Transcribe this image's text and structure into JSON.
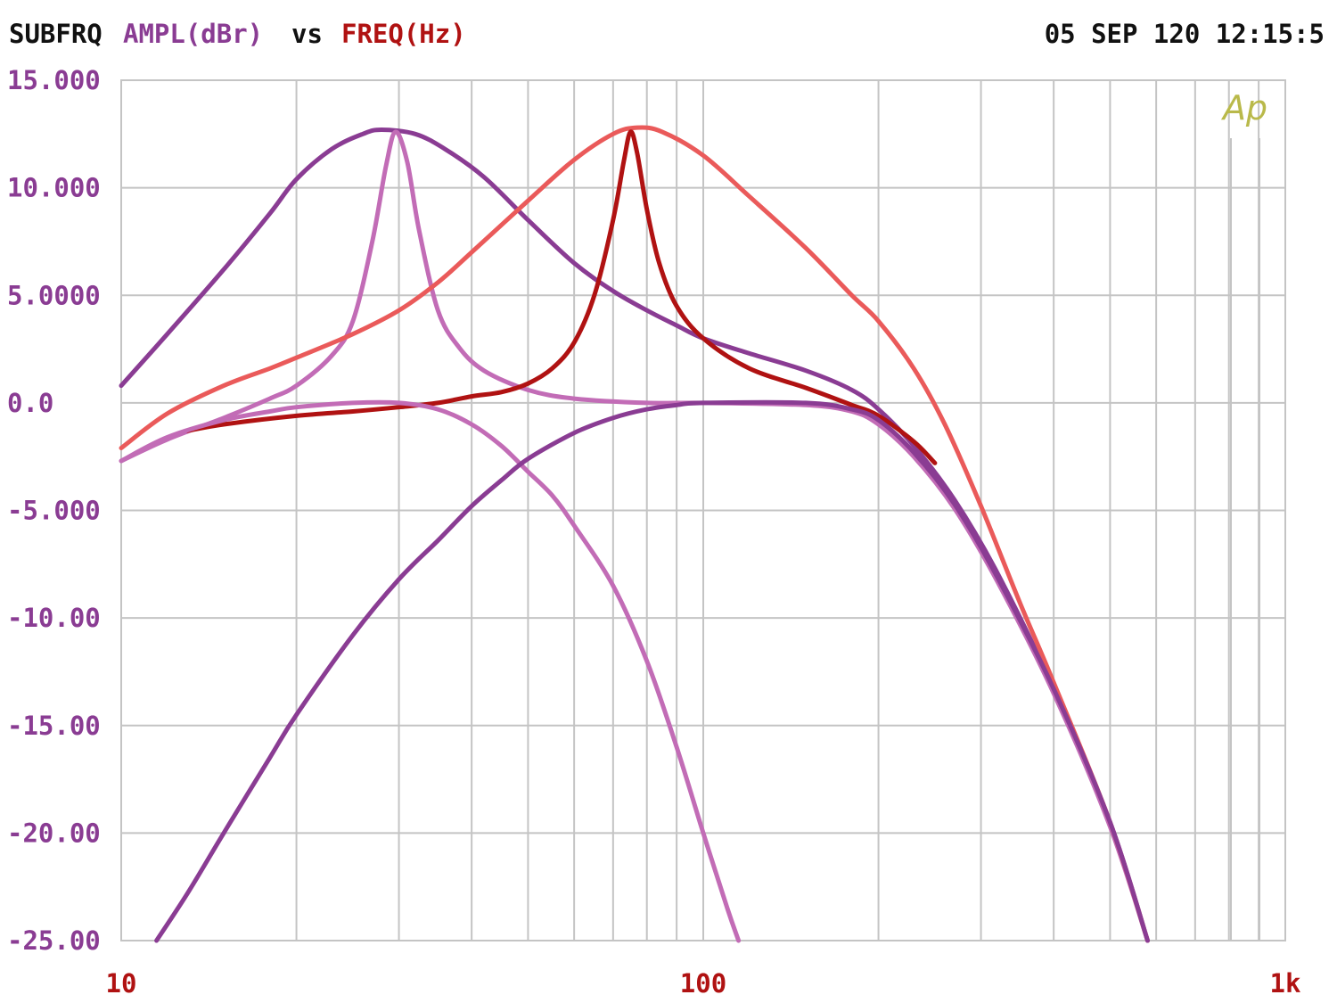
{
  "header": {
    "name": "SUBFRQ",
    "y_label": "AMPL(dBr)",
    "vs": "vs",
    "x_label": "FREQ(Hz)",
    "timestamp": "05 SEP 120 12:15:5"
  },
  "logo_text": "Ap",
  "colors": {
    "label_black": "#111111",
    "label_purple": "#8a3c93",
    "label_red": "#b01212",
    "grid": "#c4c4c4",
    "plot_border": "#c4c4c4",
    "logo": "#b9b94a"
  },
  "chart_data": {
    "type": "line",
    "title": "",
    "xlabel": "FREQ(Hz)",
    "ylabel": "AMPL(dBr)",
    "x_scale": "log",
    "xlim": [
      10,
      1000
    ],
    "ylim": [
      -25,
      15
    ],
    "grid": true,
    "x_tick_labels": [
      {
        "value": 10,
        "label": "10"
      },
      {
        "value": 100,
        "label": "100"
      },
      {
        "value": 1000,
        "label": "1k"
      }
    ],
    "y_tick_labels": [
      {
        "value": 15,
        "label": "15.000"
      },
      {
        "value": 10,
        "label": "10.000"
      },
      {
        "value": 5,
        "label": "5.0000"
      },
      {
        "value": 0,
        "label": "0.0"
      },
      {
        "value": -5,
        "label": "-5.000"
      },
      {
        "value": -10,
        "label": "-10.00"
      },
      {
        "value": -15,
        "label": "-15.00"
      },
      {
        "value": -20,
        "label": "-20.00"
      },
      {
        "value": -25,
        "label": "-25.00"
      }
    ],
    "series": [
      {
        "color": "#8a3c93",
        "width": 5,
        "points": [
          [
            10,
            0.8
          ],
          [
            12,
            3.2
          ],
          [
            15,
            6.2
          ],
          [
            18,
            8.8
          ],
          [
            20,
            10.4
          ],
          [
            23,
            11.8
          ],
          [
            26,
            12.5
          ],
          [
            28,
            12.7
          ],
          [
            32,
            12.5
          ],
          [
            36,
            11.8
          ],
          [
            42,
            10.5
          ],
          [
            50,
            8.5
          ],
          [
            60,
            6.5
          ],
          [
            70,
            5.2
          ],
          [
            80,
            4.3
          ],
          [
            90,
            3.6
          ],
          [
            100,
            3.0
          ],
          [
            120,
            2.3
          ],
          [
            150,
            1.5
          ],
          [
            180,
            0.6
          ],
          [
            200,
            -0.3
          ],
          [
            230,
            -2.0
          ],
          [
            270,
            -4.5
          ],
          [
            320,
            -7.9
          ],
          [
            400,
            -13.3
          ],
          [
            500,
            -19.5
          ],
          [
            580,
            -25.0
          ]
        ]
      },
      {
        "color": "#c26cb6",
        "width": 5,
        "points": [
          [
            10,
            -2.7
          ],
          [
            12,
            -1.7
          ],
          [
            15,
            -0.7
          ],
          [
            18,
            0.2
          ],
          [
            20,
            0.8
          ],
          [
            23,
            2.2
          ],
          [
            25,
            3.8
          ],
          [
            27,
            7.5
          ],
          [
            28.5,
            11.0
          ],
          [
            29.6,
            12.6
          ],
          [
            31,
            11.2
          ],
          [
            32.5,
            8.0
          ],
          [
            35,
            4.3
          ],
          [
            38,
            2.6
          ],
          [
            42,
            1.5
          ],
          [
            50,
            0.6
          ],
          [
            60,
            0.2
          ],
          [
            80,
            0.0
          ],
          [
            100,
            0.0
          ],
          [
            150,
            -0.1
          ],
          [
            180,
            -0.4
          ],
          [
            200,
            -1.0
          ],
          [
            230,
            -2.5
          ],
          [
            270,
            -4.9
          ],
          [
            320,
            -8.3
          ],
          [
            400,
            -13.5
          ],
          [
            500,
            -19.7
          ],
          [
            580,
            -25.0
          ]
        ]
      },
      {
        "color": "#ea5a5a",
        "width": 5,
        "points": [
          [
            10,
            -2.1
          ],
          [
            12,
            -0.5
          ],
          [
            15,
            0.8
          ],
          [
            18,
            1.6
          ],
          [
            20,
            2.1
          ],
          [
            25,
            3.2
          ],
          [
            30,
            4.3
          ],
          [
            35,
            5.6
          ],
          [
            40,
            7.0
          ],
          [
            50,
            9.4
          ],
          [
            60,
            11.3
          ],
          [
            70,
            12.5
          ],
          [
            77,
            12.8
          ],
          [
            85,
            12.6
          ],
          [
            100,
            11.5
          ],
          [
            120,
            9.6
          ],
          [
            150,
            7.2
          ],
          [
            180,
            5.0
          ],
          [
            200,
            3.8
          ],
          [
            230,
            1.6
          ],
          [
            260,
            -1.0
          ],
          [
            300,
            -4.8
          ],
          [
            350,
            -9.3
          ],
          [
            400,
            -13.0
          ],
          [
            500,
            -19.5
          ],
          [
            580,
            -25.0
          ]
        ]
      },
      {
        "color": "#b01212",
        "width": 5,
        "points": [
          [
            13,
            -1.3
          ],
          [
            15,
            -1.0
          ],
          [
            20,
            -0.6
          ],
          [
            25,
            -0.4
          ],
          [
            30,
            -0.2
          ],
          [
            35,
            0.0
          ],
          [
            40,
            0.3
          ],
          [
            45,
            0.5
          ],
          [
            50,
            0.9
          ],
          [
            55,
            1.6
          ],
          [
            60,
            2.8
          ],
          [
            65,
            5.0
          ],
          [
            70,
            8.5
          ],
          [
            73,
            11.2
          ],
          [
            75,
            12.6
          ],
          [
            77,
            11.6
          ],
          [
            80,
            9.0
          ],
          [
            84,
            6.5
          ],
          [
            90,
            4.5
          ],
          [
            100,
            3.0
          ],
          [
            120,
            1.6
          ],
          [
            150,
            0.7
          ],
          [
            180,
            -0.1
          ],
          [
            200,
            -0.6
          ],
          [
            230,
            -1.8
          ],
          [
            250,
            -2.8
          ]
        ]
      },
      {
        "color": "#c26cb6",
        "width": 5,
        "points": [
          [
            10,
            -2.7
          ],
          [
            12,
            -1.6
          ],
          [
            15,
            -0.8
          ],
          [
            18,
            -0.4
          ],
          [
            20,
            -0.2
          ],
          [
            25,
            0.0
          ],
          [
            30,
            0.0
          ],
          [
            35,
            -0.3
          ],
          [
            40,
            -1.0
          ],
          [
            45,
            -2.0
          ],
          [
            50,
            -3.2
          ],
          [
            55,
            -4.3
          ],
          [
            60,
            -5.7
          ],
          [
            70,
            -8.5
          ],
          [
            80,
            -12.0
          ],
          [
            90,
            -16.0
          ],
          [
            100,
            -20.0
          ],
          [
            110,
            -23.5
          ],
          [
            115,
            -25.0
          ]
        ]
      },
      {
        "color": "#8a3c93",
        "width": 5,
        "points": [
          [
            11.5,
            -25.0
          ],
          [
            13,
            -22.8
          ],
          [
            15,
            -20.0
          ],
          [
            18,
            -16.5
          ],
          [
            20,
            -14.5
          ],
          [
            25,
            -10.8
          ],
          [
            30,
            -8.2
          ],
          [
            35,
            -6.4
          ],
          [
            40,
            -4.8
          ],
          [
            45,
            -3.6
          ],
          [
            50,
            -2.6
          ],
          [
            60,
            -1.4
          ],
          [
            70,
            -0.7
          ],
          [
            80,
            -0.3
          ],
          [
            90,
            -0.1
          ],
          [
            100,
            0.0
          ],
          [
            150,
            0.0
          ],
          [
            180,
            -0.3
          ],
          [
            200,
            -0.8
          ],
          [
            230,
            -2.3
          ],
          [
            270,
            -4.7
          ],
          [
            320,
            -8.1
          ],
          [
            400,
            -13.3
          ],
          [
            500,
            -19.5
          ],
          [
            580,
            -25.0
          ]
        ]
      }
    ]
  }
}
